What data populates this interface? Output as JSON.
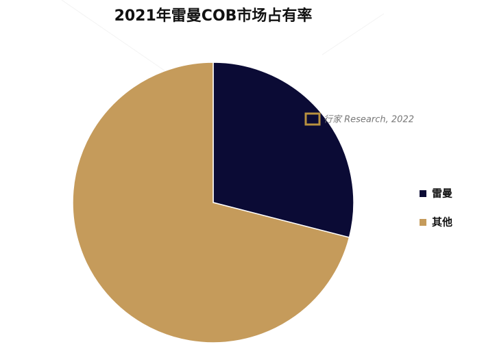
{
  "chart_data": {
    "type": "pie",
    "title": "2021年雷曼COB市场占有率",
    "categories": [
      "雷曼",
      "其他"
    ],
    "values": [
      29,
      71
    ],
    "colors": [
      "#0b0b35",
      "#c59b5b"
    ],
    "watermark": "行家 Research, 2022",
    "legend": "right"
  }
}
